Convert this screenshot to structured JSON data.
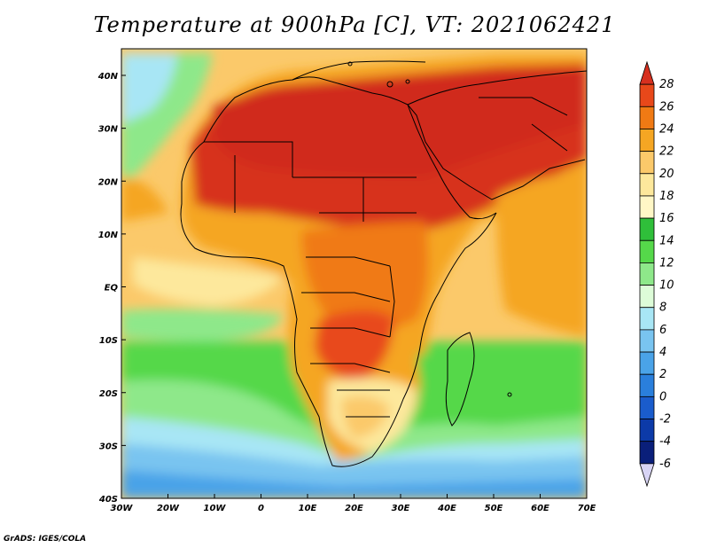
{
  "title": "Temperature at 900hPa [C], VT: 2021062421",
  "credit": "GrADS: IGES/COLA",
  "x_ticks": [
    "30W",
    "20W",
    "10W",
    "0",
    "10E",
    "20E",
    "30E",
    "40E",
    "50E",
    "60E",
    "70E"
  ],
  "y_ticks": [
    "40N",
    "30N",
    "20N",
    "10N",
    "EQ",
    "10S",
    "20S",
    "30S",
    "40S"
  ],
  "colorbar": {
    "labels": [
      "28",
      "26",
      "24",
      "22",
      "20",
      "18",
      "16",
      "14",
      "12",
      "10",
      "8",
      "6",
      "4",
      "2",
      "0",
      "-2",
      "-4",
      "-6"
    ],
    "colors": [
      "#d7301f",
      "#e8481a",
      "#f07a14",
      "#f5a623",
      "#fbc96a",
      "#fde89c",
      "#fff7c6",
      "#2fbf3a",
      "#55d84a",
      "#8ee88a",
      "#ddfcd8",
      "#a8e6f5",
      "#79c4f0",
      "#4aa3e8",
      "#2a7fdc",
      "#1a5ccc",
      "#0c3aa8",
      "#0a1f7a",
      "#d8d4f5"
    ]
  },
  "map": {
    "region": "Africa",
    "field_colors": {
      "hot": "#d7301f",
      "very_warm": "#e8481a",
      "warm": "#f07a14",
      "mild": "#f5a623",
      "tepid": "#fbc96a",
      "cool": "#fde89c",
      "green": "#55d84a",
      "lightgreen": "#8ee88a",
      "paleblue": "#a8e6f5",
      "blue": "#79c4f0",
      "deepblue": "#4aa3e8"
    }
  }
}
